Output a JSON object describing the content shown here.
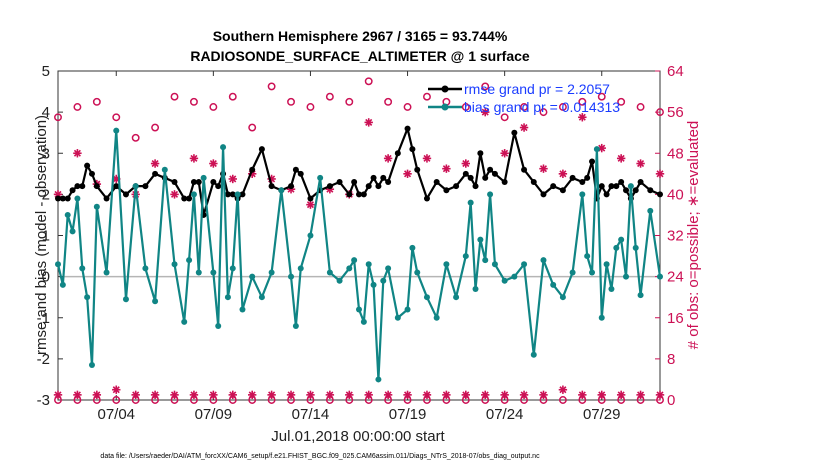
{
  "chart_data": {
    "type": "line",
    "title_line1": "Southern Hemisphere 2967 / 3165 = 93.744%",
    "title_line2": "RADIOSONDE_SURFACE_ALTIMETER @ 1 surface",
    "xlabel": "Jul.01,2018 00:00:00 start",
    "ylabel_left": "rmse and bias (model - observation)",
    "ylabel_right": "# of obs: o=possible; ∗=evaluated",
    "xlim": [
      1,
      32
    ],
    "ylim_left": [
      -3,
      5
    ],
    "ylim_right": [
      0,
      64
    ],
    "x_tick_values": [
      4,
      9,
      14,
      19,
      24,
      29
    ],
    "x_tick_labels": [
      "07/04",
      "07/09",
      "07/14",
      "07/19",
      "07/24",
      "07/29"
    ],
    "y_left_ticks": [
      5,
      4,
      3,
      2,
      1,
      0,
      -1,
      -2,
      -3
    ],
    "y_left_tick_labels": [
      "5",
      "4",
      "3",
      "2",
      "1",
      "0",
      "-1",
      "-2",
      "-3"
    ],
    "y_right_ticks": [
      64,
      56,
      48,
      40,
      32,
      24,
      16,
      8,
      0
    ],
    "y_right_tick_labels": [
      "64",
      "56",
      "48",
      "40",
      "32",
      "24",
      "16",
      "8",
      "0"
    ],
    "zero_line": 0,
    "footer": "data file: /Users/raeder/DAI/ATM_forcXX/CAM6_setup/f.e21.FHIST_BGC.f09_025.CAM6assim.011/Diags_NTrS_2018-07/obs_diag_output.nc",
    "colors": {
      "rmse": "#000000",
      "bias": "#108585",
      "obs": "#cc1155",
      "zero": "#b5b5b5",
      "legend_text": "#1a3cff"
    },
    "series": [
      {
        "name": "rmse grand pr = 2.2057",
        "axis": "left",
        "x": [
          1.0,
          1.25,
          1.5,
          1.75,
          2.0,
          2.25,
          2.5,
          2.75,
          3.0,
          3.5,
          4.0,
          4.5,
          5.0,
          5.5,
          6.0,
          6.5,
          7.0,
          7.5,
          7.75,
          8.0,
          8.25,
          8.5,
          9.0,
          9.25,
          9.5,
          9.75,
          10.0,
          10.25,
          10.5,
          11.0,
          11.5,
          12.0,
          12.5,
          13.0,
          13.25,
          13.5,
          14.0,
          14.5,
          15.0,
          15.5,
          16.0,
          16.25,
          16.5,
          16.75,
          17.0,
          17.25,
          17.5,
          17.75,
          18.0,
          18.5,
          19.0,
          19.25,
          19.5,
          20.0,
          20.5,
          21.0,
          21.5,
          22.0,
          22.25,
          22.5,
          22.75,
          23.0,
          23.25,
          23.5,
          24.0,
          24.5,
          25.0,
          25.5,
          26.0,
          26.5,
          27.0,
          27.5,
          28.0,
          28.25,
          28.5,
          28.75,
          29.0,
          29.25,
          29.5,
          29.75,
          30.0,
          30.25,
          30.5,
          30.75,
          31.0,
          31.5,
          32.0
        ],
        "values": [
          1.9,
          1.9,
          1.9,
          2.1,
          2.2,
          2.2,
          2.7,
          2.5,
          2.2,
          1.9,
          2.2,
          2.0,
          2.2,
          2.2,
          2.5,
          2.4,
          2.3,
          1.9,
          1.9,
          2.3,
          2.3,
          1.5,
          2.3,
          2.2,
          2.5,
          2.0,
          2.0,
          1.9,
          2.0,
          2.6,
          3.1,
          2.2,
          2.1,
          2.2,
          2.6,
          2.5,
          1.9,
          2.1,
          2.2,
          2.3,
          2.0,
          2.3,
          2.0,
          2.0,
          2.2,
          2.4,
          2.2,
          2.4,
          2.3,
          3.0,
          3.6,
          3.1,
          2.6,
          1.9,
          2.3,
          2.1,
          2.2,
          2.5,
          2.4,
          2.2,
          3.0,
          2.4,
          2.6,
          2.5,
          2.3,
          3.5,
          2.6,
          2.3,
          2.0,
          2.2,
          2.1,
          2.4,
          2.3,
          2.4,
          2.8,
          1.9,
          2.2,
          2.0,
          2.2,
          2.2,
          2.3,
          2.1,
          1.9,
          2.1,
          2.3,
          2.1,
          2.0
        ],
        "marker": "dot"
      },
      {
        "name": "bias grand pr = 0.014313",
        "axis": "left",
        "x": [
          1.0,
          1.25,
          1.5,
          1.75,
          2.0,
          2.25,
          2.5,
          2.75,
          3.0,
          3.5,
          4.0,
          4.5,
          5.0,
          5.5,
          6.0,
          6.5,
          7.0,
          7.5,
          7.75,
          8.0,
          8.25,
          8.5,
          9.0,
          9.25,
          9.5,
          9.75,
          10.0,
          10.25,
          10.5,
          11.0,
          11.5,
          12.0,
          12.5,
          13.0,
          13.25,
          13.5,
          14.0,
          14.5,
          15.0,
          15.5,
          16.0,
          16.25,
          16.5,
          16.75,
          17.0,
          17.25,
          17.5,
          17.75,
          18.0,
          18.5,
          19.0,
          19.25,
          19.5,
          20.0,
          20.5,
          21.0,
          21.5,
          22.0,
          22.25,
          22.5,
          22.75,
          23.0,
          23.25,
          23.5,
          24.0,
          24.5,
          25.0,
          25.5,
          26.0,
          26.5,
          27.0,
          27.5,
          28.0,
          28.25,
          28.5,
          28.75,
          29.0,
          29.25,
          29.5,
          29.75,
          30.0,
          30.25,
          30.5,
          30.75,
          31.0,
          31.5,
          32.0
        ],
        "values": [
          0.3,
          -0.2,
          1.5,
          1.1,
          1.9,
          0.2,
          -0.5,
          -2.15,
          1.7,
          0.1,
          3.55,
          -0.55,
          2.2,
          0.2,
          -0.6,
          2.6,
          0.3,
          -1.1,
          0.4,
          2.0,
          0.1,
          2.4,
          0.1,
          -1.2,
          3.15,
          -0.5,
          0.2,
          2.0,
          -0.8,
          0.0,
          -0.5,
          0.1,
          2.1,
          0.0,
          -1.2,
          0.2,
          1.0,
          2.4,
          0.1,
          -0.1,
          0.2,
          0.4,
          -0.8,
          -1.1,
          0.3,
          -0.2,
          -2.5,
          -0.1,
          0.2,
          -1.0,
          -0.8,
          0.7,
          0.1,
          -0.5,
          -1.0,
          0.3,
          -0.5,
          0.5,
          1.8,
          -0.3,
          0.9,
          0.4,
          2.0,
          0.3,
          -0.1,
          0.0,
          0.3,
          -1.9,
          0.4,
          -0.2,
          -0.5,
          0.1,
          2.0,
          0.5,
          0.1,
          3.1,
          -1.0,
          0.3,
          -0.3,
          0.7,
          0.9,
          0.0,
          2.2,
          0.7,
          -0.45,
          1.6,
          0.0
        ],
        "marker": "dot"
      },
      {
        "name": "possible",
        "axis": "right",
        "x": [
          1,
          2,
          3,
          4,
          5,
          6,
          7,
          8,
          9,
          10,
          11,
          12,
          13,
          14,
          15,
          16,
          17,
          18,
          19,
          20,
          21,
          22,
          23,
          24,
          25,
          26,
          27,
          28,
          29,
          30,
          31,
          32
        ],
        "values": [
          55,
          57,
          58,
          55,
          51,
          53,
          59,
          58,
          57,
          59,
          53,
          61,
          58,
          57,
          59,
          58,
          62,
          58,
          57,
          59,
          58,
          57,
          61,
          55,
          57,
          56,
          57,
          58,
          59,
          58,
          57,
          56
        ],
        "marker": "circle"
      },
      {
        "name": "evaluated",
        "axis": "right",
        "x": [
          1,
          2,
          3,
          4,
          5,
          6,
          7,
          8,
          9,
          10,
          11,
          12,
          13,
          14,
          15,
          16,
          17,
          18,
          19,
          20,
          21,
          22,
          23,
          24,
          25,
          26,
          27,
          28,
          29,
          30,
          31,
          32
        ],
        "values": [
          40,
          48,
          42,
          43,
          40,
          46,
          40,
          47,
          46,
          43,
          44,
          43,
          41,
          38,
          41,
          40,
          54,
          47,
          44,
          47,
          45,
          46,
          56,
          48,
          53,
          45,
          44,
          55,
          49,
          47,
          46,
          44
        ],
        "marker": "asterisk"
      },
      {
        "name": "possible_bottom",
        "axis": "right",
        "x": [
          1,
          2,
          3,
          4,
          5,
          6,
          7,
          8,
          9,
          10,
          11,
          12,
          13,
          14,
          15,
          16,
          17,
          18,
          19,
          20,
          21,
          22,
          23,
          24,
          25,
          26,
          27,
          28,
          29,
          30,
          31,
          32
        ],
        "values": [
          0,
          0,
          0,
          0,
          0,
          0,
          0,
          0,
          0,
          0,
          0,
          0,
          0,
          0,
          0,
          0,
          0,
          0,
          0,
          0,
          0,
          0,
          0,
          0,
          0,
          0,
          0,
          0,
          0,
          0,
          0,
          0
        ],
        "marker": "circle"
      },
      {
        "name": "evaluated_bottom",
        "axis": "right",
        "x": [
          1,
          2,
          3,
          4,
          5,
          6,
          7,
          8,
          9,
          10,
          11,
          12,
          13,
          14,
          15,
          16,
          17,
          18,
          19,
          20,
          21,
          22,
          23,
          24,
          25,
          26,
          27,
          28,
          29,
          30,
          31,
          32
        ],
        "values": [
          1,
          1,
          1,
          2,
          1,
          1,
          1,
          1,
          1,
          1,
          1,
          1,
          1,
          1,
          1,
          1,
          1,
          1,
          1,
          1,
          1,
          1,
          1,
          1,
          1,
          1,
          2,
          1,
          1,
          1,
          1,
          1
        ],
        "marker": "asterisk"
      }
    ]
  }
}
